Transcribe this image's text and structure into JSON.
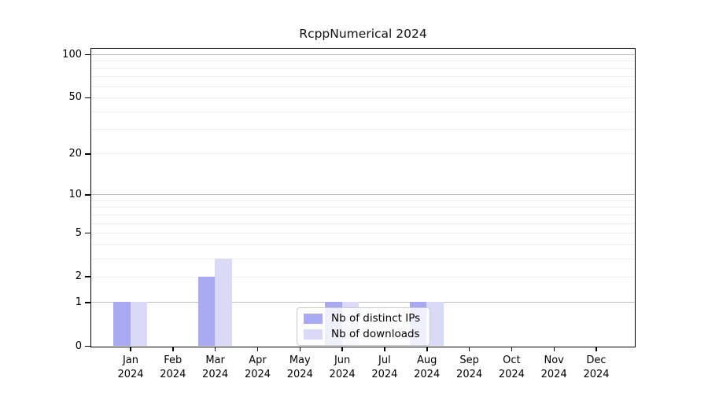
{
  "chart_data": {
    "type": "bar",
    "title": "RcppNumerical 2024",
    "categories": [
      "Jan 2024",
      "Feb 2024",
      "Mar 2024",
      "Apr 2024",
      "May 2024",
      "Jun 2024",
      "Jul 2024",
      "Aug 2024",
      "Sep 2024",
      "Oct 2024",
      "Nov 2024",
      "Dec 2024"
    ],
    "series": [
      {
        "name": "Nb of distinct IPs",
        "color": "#a9a9f1",
        "values": [
          1,
          0,
          2,
          0,
          0,
          1,
          0,
          1,
          0,
          0,
          0,
          0
        ]
      },
      {
        "name": "Nb of downloads",
        "color": "#dadaf8",
        "values": [
          1,
          0,
          3,
          0,
          0,
          1,
          0,
          1,
          0,
          0,
          0,
          0
        ]
      }
    ],
    "xlabel": "",
    "ylabel": "",
    "yscale": "log1p",
    "yticks": [
      0,
      1,
      2,
      5,
      10,
      20,
      50,
      100
    ],
    "ylim": [
      0,
      110
    ],
    "grid": "horizontal, major lines at powers of 10, minor log lines",
    "legend_position": "inside-bottom-center"
  },
  "style": {
    "background": "#ffffff",
    "axis_color": "#000000",
    "text_color": "#000000",
    "grid_major_color": "#bcbcbc",
    "grid_minor_color": "#ececec",
    "legend_border_color": "#cccccc"
  }
}
